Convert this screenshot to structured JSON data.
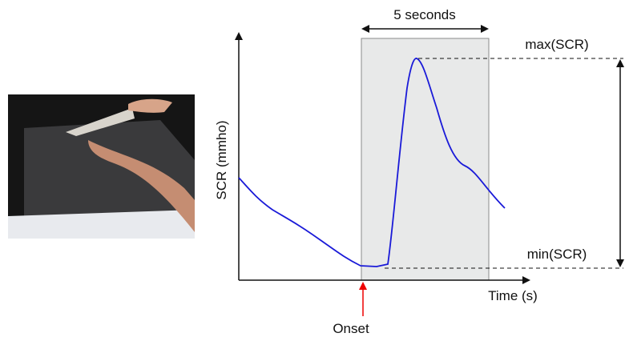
{
  "axes": {
    "y_label": "SCR (mmho)",
    "x_label": "Time (s)"
  },
  "annotations": {
    "window": "5 seconds",
    "max": "max(SCR)",
    "min": "min(SCR)",
    "onset": "Onset"
  }
}
